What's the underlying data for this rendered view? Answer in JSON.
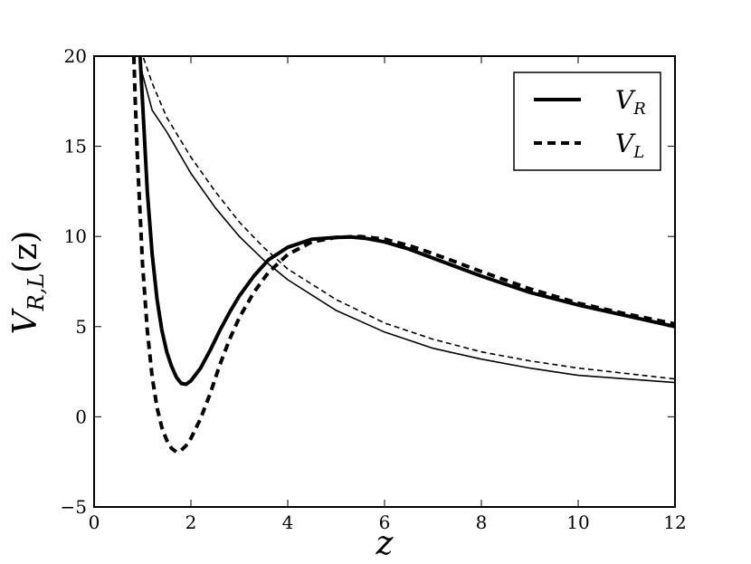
{
  "chart_data": {
    "type": "line",
    "title": "",
    "xlabel": "z",
    "ylabel": {
      "main": "V",
      "sub": "R,L",
      "arg": "(z)"
    },
    "xlim": [
      0,
      12
    ],
    "ylim": [
      -5,
      20
    ],
    "xticks": [
      "0",
      "2",
      "4",
      "6",
      "8",
      "10",
      "12"
    ],
    "yticks": [
      "−5",
      "0",
      "5",
      "10",
      "15",
      "20"
    ],
    "xtick_values": [
      0,
      2,
      4,
      6,
      8,
      10,
      12
    ],
    "ytick_values": [
      -5,
      0,
      5,
      10,
      15,
      20
    ],
    "grid": false,
    "legend_position": "top-right",
    "legend": [
      {
        "main": "V",
        "sub": "R",
        "style": "solid"
      },
      {
        "main": "V",
        "sub": "L",
        "style": "dashed"
      }
    ],
    "series": [
      {
        "name": "V_R",
        "style": "solid",
        "weight": "thick",
        "x": [
          0.95,
          1.0,
          1.1,
          1.2,
          1.3,
          1.4,
          1.5,
          1.6,
          1.7,
          1.8,
          1.9,
          2.0,
          2.2,
          2.4,
          2.6,
          2.8,
          3.0,
          3.3,
          3.6,
          4.0,
          4.5,
          5.0,
          5.3,
          5.6,
          6.0,
          6.5,
          7.0,
          8.0,
          9.0,
          10.0,
          11.0,
          12.0
        ],
        "y": [
          20.0,
          17.5,
          12.5,
          9.0,
          6.5,
          4.8,
          3.6,
          2.8,
          2.2,
          1.85,
          1.8,
          2.0,
          2.7,
          3.7,
          4.8,
          5.8,
          6.7,
          7.8,
          8.7,
          9.4,
          9.85,
          9.95,
          9.97,
          9.9,
          9.7,
          9.3,
          8.8,
          7.8,
          6.9,
          6.2,
          5.6,
          5.0
        ]
      },
      {
        "name": "V_L",
        "style": "dashed",
        "weight": "thick",
        "x": [
          0.82,
          0.85,
          0.9,
          1.0,
          1.1,
          1.2,
          1.3,
          1.4,
          1.5,
          1.6,
          1.7,
          1.8,
          1.9,
          2.0,
          2.2,
          2.4,
          2.6,
          2.8,
          3.0,
          3.3,
          3.6,
          4.0,
          4.5,
          5.0,
          5.5,
          6.0,
          6.5,
          7.0,
          8.0,
          9.0,
          10.0,
          11.0,
          12.0
        ],
        "y": [
          20.0,
          17.5,
          14.0,
          8.5,
          4.8,
          2.2,
          0.5,
          -0.6,
          -1.3,
          -1.75,
          -1.95,
          -1.85,
          -1.6,
          -1.2,
          -0.1,
          1.3,
          2.9,
          4.3,
          5.5,
          6.9,
          8.0,
          9.0,
          9.7,
          9.95,
          10.0,
          9.85,
          9.5,
          9.05,
          8.05,
          7.1,
          6.3,
          5.7,
          5.15
        ]
      },
      {
        "name": "V_R thin",
        "style": "solid",
        "weight": "thin",
        "x": [
          0.97,
          1.0,
          1.2,
          1.5,
          2.0,
          2.5,
          3.0,
          3.5,
          4.0,
          5.0,
          6.0,
          7.0,
          8.0,
          9.0,
          10.0,
          11.0,
          12.0
        ],
        "y": [
          19.4,
          19.0,
          17.0,
          15.8,
          13.5,
          11.6,
          10.0,
          8.7,
          7.6,
          5.9,
          4.7,
          3.8,
          3.2,
          2.7,
          2.3,
          2.1,
          1.9
        ]
      },
      {
        "name": "V_L thin",
        "style": "dashed",
        "weight": "thin",
        "x": [
          1.02,
          1.2,
          1.5,
          2.0,
          2.5,
          3.0,
          3.5,
          4.0,
          5.0,
          6.0,
          7.0,
          8.0,
          9.0,
          10.0,
          11.0,
          12.0
        ],
        "y": [
          19.9,
          18.5,
          16.6,
          14.4,
          12.5,
          10.8,
          9.4,
          8.2,
          6.5,
          5.2,
          4.3,
          3.6,
          3.1,
          2.7,
          2.4,
          2.1
        ]
      }
    ]
  }
}
